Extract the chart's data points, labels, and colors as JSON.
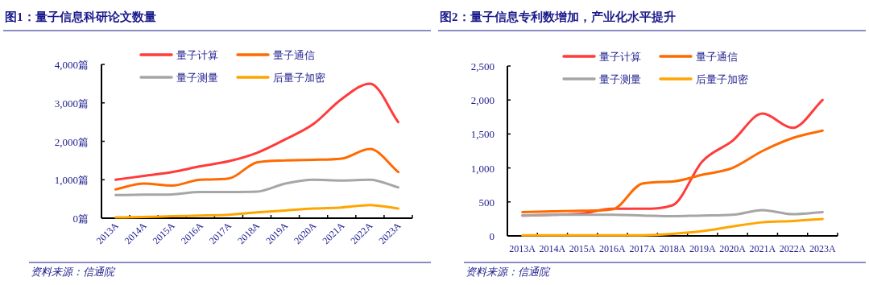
{
  "chart_data": [
    {
      "type": "line",
      "title": "图1：量子信息科研论文数量",
      "categories": [
        "2013A",
        "2014A",
        "2015A",
        "2016A",
        "2017A",
        "2018A",
        "2019A",
        "2020A",
        "2021A",
        "2022A",
        "2023A"
      ],
      "series": [
        {
          "name": "量子计算",
          "color": "#ff3b3b",
          "values": [
            1000,
            1100,
            1200,
            1350,
            1480,
            1700,
            2050,
            2450,
            3100,
            3500,
            2500
          ]
        },
        {
          "name": "量子通信",
          "color": "#ff6a00",
          "values": [
            750,
            900,
            850,
            1000,
            1030,
            1450,
            1500,
            1520,
            1550,
            1800,
            1200
          ]
        },
        {
          "name": "量子测量",
          "color": "#a6a6a6",
          "values": [
            600,
            610,
            620,
            680,
            680,
            690,
            900,
            1000,
            980,
            1000,
            800
          ]
        },
        {
          "name": "后量子加密",
          "color": "#ffa500",
          "values": [
            20,
            30,
            50,
            70,
            90,
            150,
            200,
            250,
            280,
            340,
            250
          ]
        }
      ],
      "ylim": [
        0,
        4000
      ],
      "yticks": [
        {
          "value": 0,
          "label": "0篇"
        },
        {
          "value": 1000,
          "label": "1,000篇"
        },
        {
          "value": 2000,
          "label": "2,000篇"
        },
        {
          "value": 3000,
          "label": "3,000篇"
        },
        {
          "value": 4000,
          "label": "4,000篇"
        }
      ],
      "legend": "top",
      "annotations": [
        "资料来源：信通院"
      ]
    },
    {
      "type": "line",
      "title": "图2：量子信息专利数增加，产业化水平提升",
      "categories": [
        "2013A",
        "2014A",
        "2015A",
        "2016A",
        "2017A",
        "2018A",
        "2019A",
        "2020A",
        "2021A",
        "2022A",
        "2023A"
      ],
      "series": [
        {
          "name": "量子计算",
          "color": "#ff3b3b",
          "values": [
            300,
            310,
            330,
            400,
            400,
            450,
            1100,
            1400,
            1800,
            1590,
            2000
          ]
        },
        {
          "name": "量子通信",
          "color": "#ff6a00",
          "values": [
            350,
            360,
            370,
            390,
            770,
            800,
            900,
            1000,
            1250,
            1440,
            1550
          ]
        },
        {
          "name": "量子测量",
          "color": "#a6a6a6",
          "values": [
            300,
            310,
            310,
            310,
            300,
            290,
            300,
            310,
            380,
            320,
            350
          ]
        },
        {
          "name": "后量子加密",
          "color": "#ffa500",
          "values": [
            10,
            10,
            10,
            10,
            10,
            30,
            70,
            140,
            200,
            220,
            250
          ]
        }
      ],
      "ylim": [
        0,
        2500
      ],
      "yticks": [
        0,
        500,
        {
          "value": 1000,
          "label": "1,000"
        },
        {
          "value": 1500,
          "label": "1,500"
        },
        {
          "value": 2000,
          "label": "2,000"
        },
        {
          "value": 2500,
          "label": "2,500"
        }
      ],
      "legend": "top",
      "annotations": [
        "资料来源：信通院"
      ]
    }
  ]
}
